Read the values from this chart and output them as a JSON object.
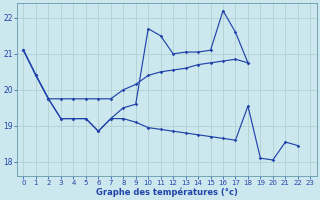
{
  "xlabel": "Graphe des températures (°c)",
  "background_color": "#cce8ee",
  "grid_color": "#aacccc",
  "line_color": "#2244aa",
  "ylim": [
    17.6,
    22.4
  ],
  "xlim": [
    -0.5,
    23.5
  ],
  "yticks": [
    18,
    19,
    20,
    21,
    22
  ],
  "xticks": [
    0,
    1,
    2,
    3,
    4,
    5,
    6,
    7,
    8,
    9,
    10,
    11,
    12,
    13,
    14,
    15,
    16,
    17,
    18,
    19,
    20,
    21,
    22,
    23
  ],
  "line1_x": [
    0,
    1,
    2,
    3,
    4,
    5,
    6,
    7,
    8,
    9,
    10,
    11,
    12,
    13,
    14,
    15,
    16,
    17,
    18,
    19,
    20,
    21,
    22,
    23
  ],
  "line1_y": [
    21.1,
    20.4,
    19.75,
    19.75,
    19.75,
    19.75,
    19.75,
    19.75,
    20.0,
    20.15,
    20.4,
    20.5,
    20.55,
    20.6,
    20.7,
    20.75,
    20.8,
    20.85,
    20.75,
    null,
    null,
    null,
    null,
    null
  ],
  "line2_x": [
    0,
    1,
    2,
    3,
    4,
    5,
    6,
    7,
    8,
    9,
    10,
    11,
    12,
    13,
    14,
    15,
    16,
    17,
    18,
    19,
    20,
    21,
    22,
    23
  ],
  "line2_y": [
    21.1,
    20.4,
    19.75,
    19.2,
    19.2,
    19.2,
    18.85,
    19.2,
    19.5,
    19.6,
    21.7,
    21.5,
    21.0,
    21.05,
    21.05,
    21.1,
    22.2,
    21.6,
    20.75,
    null,
    null,
    null,
    null,
    null
  ],
  "line3_x": [
    0,
    1,
    2,
    3,
    4,
    5,
    6,
    7,
    8,
    9,
    10,
    11,
    12,
    13,
    14,
    15,
    16,
    17,
    18,
    19,
    20,
    21,
    22,
    23
  ],
  "line3_y": [
    21.1,
    20.4,
    19.75,
    19.2,
    19.2,
    19.2,
    18.85,
    19.2,
    19.2,
    19.1,
    18.95,
    18.9,
    18.85,
    18.8,
    18.75,
    18.7,
    18.65,
    18.6,
    19.55,
    18.1,
    18.05,
    18.55,
    18.45,
    null
  ]
}
